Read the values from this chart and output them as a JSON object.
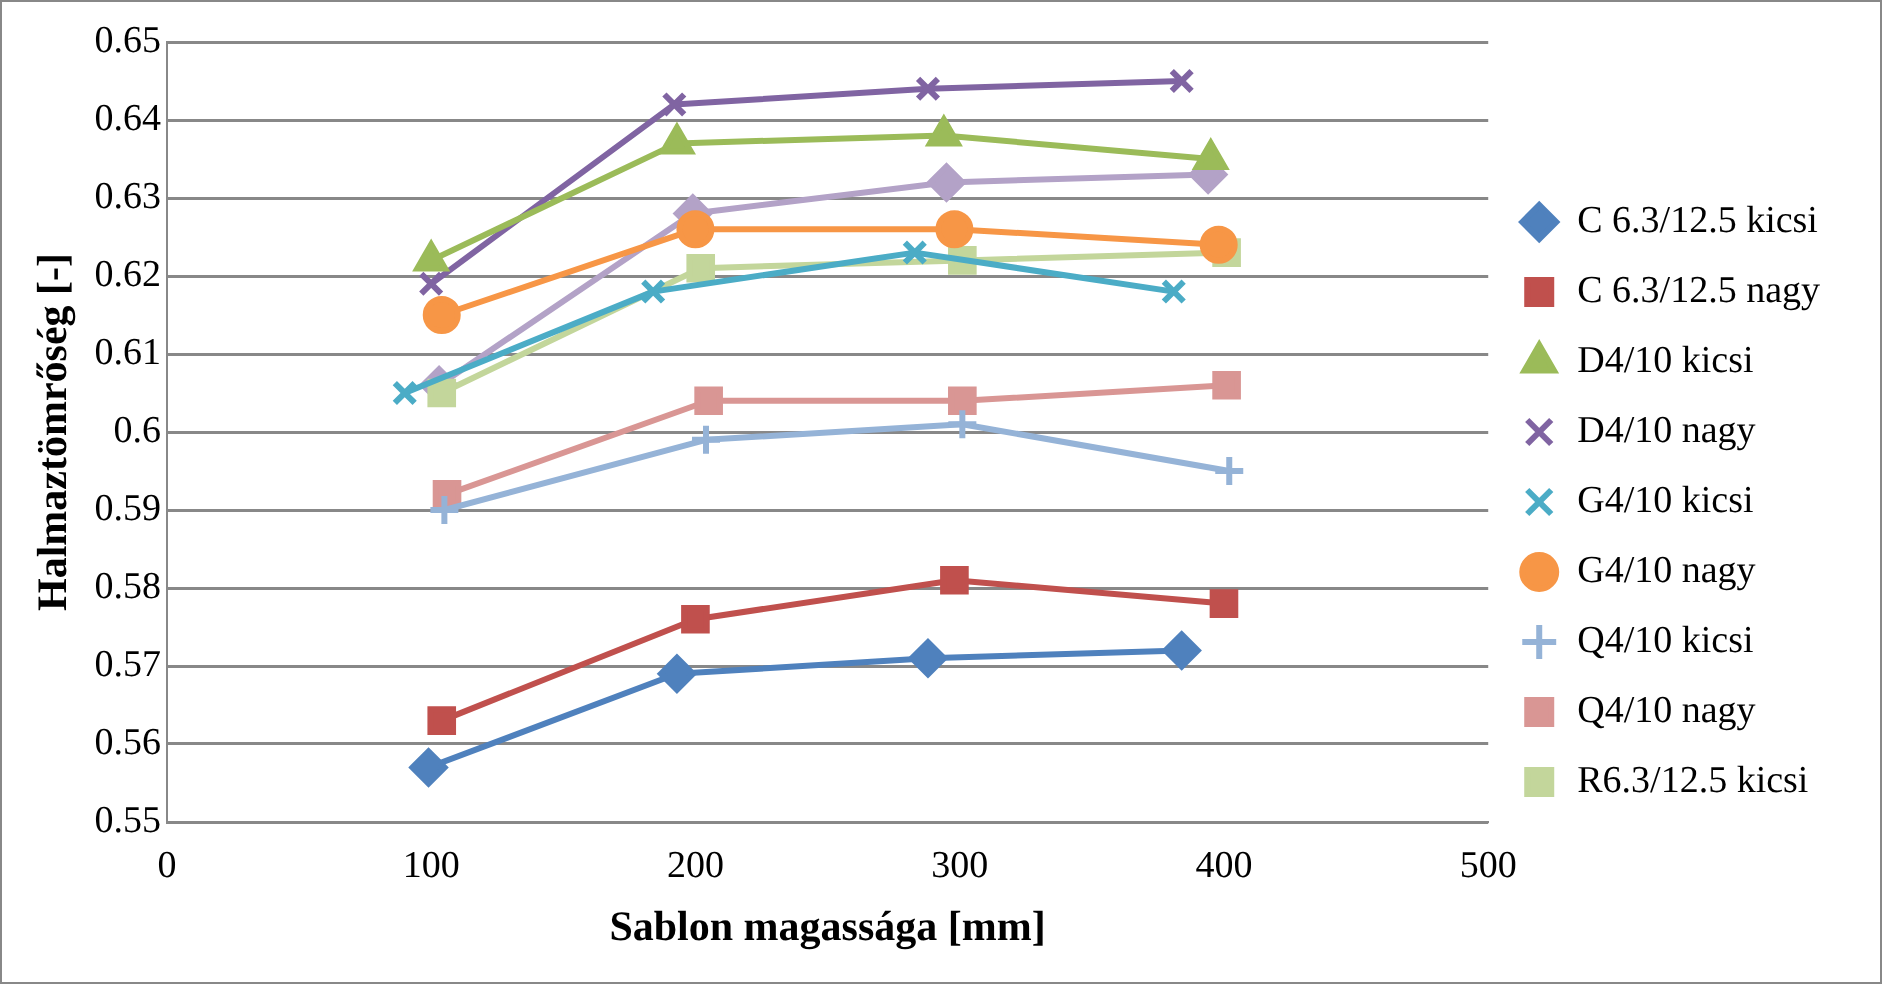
{
  "chart_data": {
    "type": "line",
    "xlabel": "Sablon magassága [mm]",
    "ylabel": "Halmaztömrőség [-]",
    "xlim": [
      0,
      500
    ],
    "xticks": [
      0,
      100,
      200,
      300,
      400,
      500
    ],
    "ylim": [
      0.55,
      0.65
    ],
    "yticks": [
      0.55,
      0.56,
      0.57,
      0.58,
      0.59,
      0.6,
      0.61,
      0.62,
      0.63,
      0.64,
      0.65
    ],
    "grid": "y",
    "legend": "right",
    "series": [
      {
        "name": "C 6.3/12.5 kicsi",
        "color": "#4f81bd",
        "marker": "diamond",
        "x": [
          99,
          193,
          288,
          384
        ],
        "values": [
          0.557,
          0.569,
          0.571,
          0.572
        ]
      },
      {
        "name": "C 6.3/12.5 nagy",
        "color": "#c0504d",
        "marker": "square",
        "x": [
          104,
          200,
          298,
          400
        ],
        "values": [
          0.563,
          0.576,
          0.581,
          0.578
        ]
      },
      {
        "name": "D4/10 kicsi",
        "color": "#9bbb59",
        "marker": "triangle",
        "x": [
          100,
          193,
          294,
          395
        ],
        "values": [
          0.622,
          0.637,
          0.638,
          0.635
        ]
      },
      {
        "name": "D4/10 nagy",
        "color": "#8064a2",
        "marker": "cross",
        "x": [
          100,
          192,
          288,
          384
        ],
        "values": [
          0.619,
          0.642,
          0.644,
          0.645
        ]
      },
      {
        "name": "G4/10 kicsi",
        "color": "#4bacc6",
        "marker": "cross",
        "x": [
          90,
          184,
          283,
          381
        ],
        "values": [
          0.605,
          0.618,
          0.623,
          0.618
        ]
      },
      {
        "name": "G4/10 nagy",
        "color": "#f79646",
        "marker": "circle",
        "x": [
          104,
          200,
          298,
          398
        ],
        "values": [
          0.615,
          0.626,
          0.626,
          0.624
        ]
      },
      {
        "name": "Q4/10 kicsi",
        "color": "#95b3d7",
        "marker": "plus",
        "x": [
          105,
          204,
          301,
          402
        ],
        "values": [
          0.59,
          0.599,
          0.601,
          0.595
        ]
      },
      {
        "name": "Q4/10 nagy",
        "color": "#d99694",
        "marker": "square",
        "x": [
          106,
          205,
          301,
          401
        ],
        "values": [
          0.592,
          0.604,
          0.604,
          0.606
        ]
      },
      {
        "name": "R6.3/12.5 kicsi",
        "color": "#c3d69b",
        "marker": "square",
        "x": [
          104,
          202,
          301,
          401
        ],
        "values": [
          0.605,
          0.621,
          0.622,
          0.623
        ]
      },
      {
        "color": "#b3a2c7",
        "marker": "diamond",
        "x": [
          103,
          199,
          295,
          394
        ],
        "values": [
          0.606,
          0.628,
          0.632,
          0.633
        ]
      }
    ]
  }
}
